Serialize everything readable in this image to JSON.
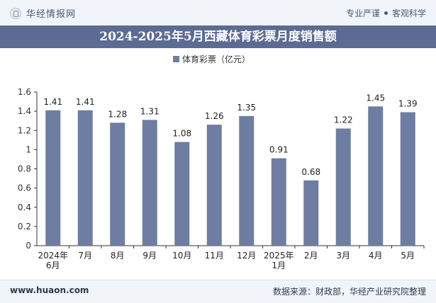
{
  "header": {
    "brand": "华经情报网",
    "brand_icon": "globe-logo-icon",
    "tag_professional": "专业严谨",
    "tag_objective": "客观科学"
  },
  "title": "2024-2025年5月西藏体育彩票月度销售额",
  "footer": {
    "website": "www.huaon.com",
    "source": "数据来源：财政部，华经产业研究院整理"
  },
  "chart_data": {
    "type": "bar",
    "title": "2024-2025年5月西藏体育彩票月度销售额",
    "xlabel": "",
    "ylabel": "",
    "categories": [
      [
        "2024年",
        "6月"
      ],
      [
        "7月"
      ],
      [
        "8月"
      ],
      [
        "9月"
      ],
      [
        "10月"
      ],
      [
        "11月"
      ],
      [
        "12月"
      ],
      [
        "2025年",
        "1月"
      ],
      [
        "2月"
      ],
      [
        "3月"
      ],
      [
        "4月"
      ],
      [
        "5月"
      ]
    ],
    "series": [
      {
        "name": "体育彩票（亿元）",
        "color": "#6e7da2",
        "values": [
          1.41,
          1.41,
          1.28,
          1.31,
          1.08,
          1.26,
          1.35,
          0.91,
          0.68,
          1.22,
          1.45,
          1.39
        ]
      }
    ],
    "data_labels": [
      "1.41",
      "1.41",
      "1.28",
      "1.31",
      "1.08",
      "1.26",
      "1.35",
      "0.91",
      "0.68",
      "1.22",
      "1.45",
      "1.39"
    ],
    "yticks": [
      "0",
      "0.2",
      "0.4",
      "0.6",
      "0.8",
      "1",
      "1.2",
      "1.4",
      "1.6"
    ],
    "ylim": [
      0,
      1.6
    ],
    "grid": false,
    "legend_position": "top-center"
  }
}
